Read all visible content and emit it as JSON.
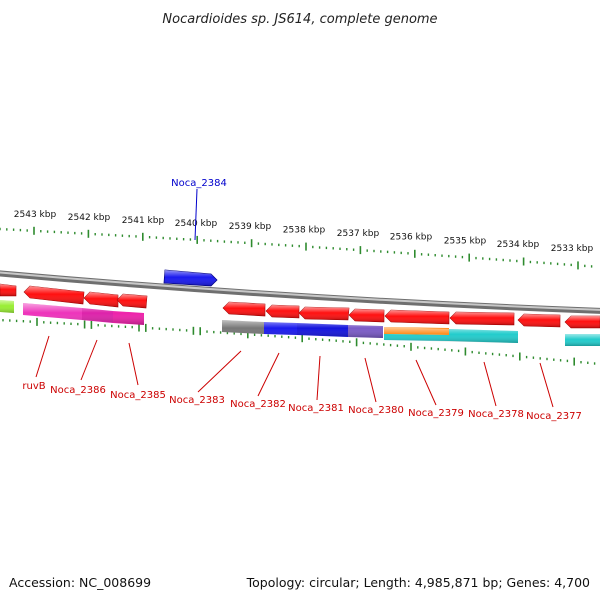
{
  "title": "Nocardioides sp. JS614, complete genome",
  "footer": {
    "accession": "Accession: NC_008699",
    "summary": "Topology: circular; Length: 4,985,871 bp; Genes: 4,700"
  },
  "colors": {
    "backbone": "#8c8c8c",
    "tick": "#2e8b2e",
    "forward_label": "#0000cc",
    "reverse_label": "#cc0000",
    "red": "#ff1010",
    "magenta": "#ee33bb",
    "gray": "#777777",
    "blue": "#1a1aee",
    "purple": "#7a5bc7",
    "orange": "#ff8c1a",
    "cyan": "#22cccc",
    "lime": "#99ee33"
  },
  "scale": {
    "labels": [
      "2543 kbp",
      "2542 kbp",
      "2541 kbp",
      "2540 kbp",
      "2539 kbp",
      "2538 kbp",
      "2537 kbp",
      "2536 kbp",
      "2535 kbp",
      "2534 kbp",
      "2533 kbp"
    ]
  },
  "forward_labels": [
    {
      "id": "Noca_2384",
      "text": "Noca_2384"
    }
  ],
  "reverse_labels": [
    {
      "id": "ruvB",
      "text": "ruvB"
    },
    {
      "id": "Noca_2386",
      "text": "Noca_2386"
    },
    {
      "id": "Noca_2385",
      "text": "Noca_2385"
    },
    {
      "id": "Noca_2383",
      "text": "Noca_2383"
    },
    {
      "id": "Noca_2382",
      "text": "Noca_2382"
    },
    {
      "id": "Noca_2381",
      "text": "Noca_2381"
    },
    {
      "id": "Noca_2380",
      "text": "Noca_2380"
    },
    {
      "id": "Noca_2379",
      "text": "Noca_2379"
    },
    {
      "id": "Noca_2378",
      "text": "Noca_2378"
    },
    {
      "id": "Noca_2377",
      "text": "Noca_2377"
    }
  ]
}
